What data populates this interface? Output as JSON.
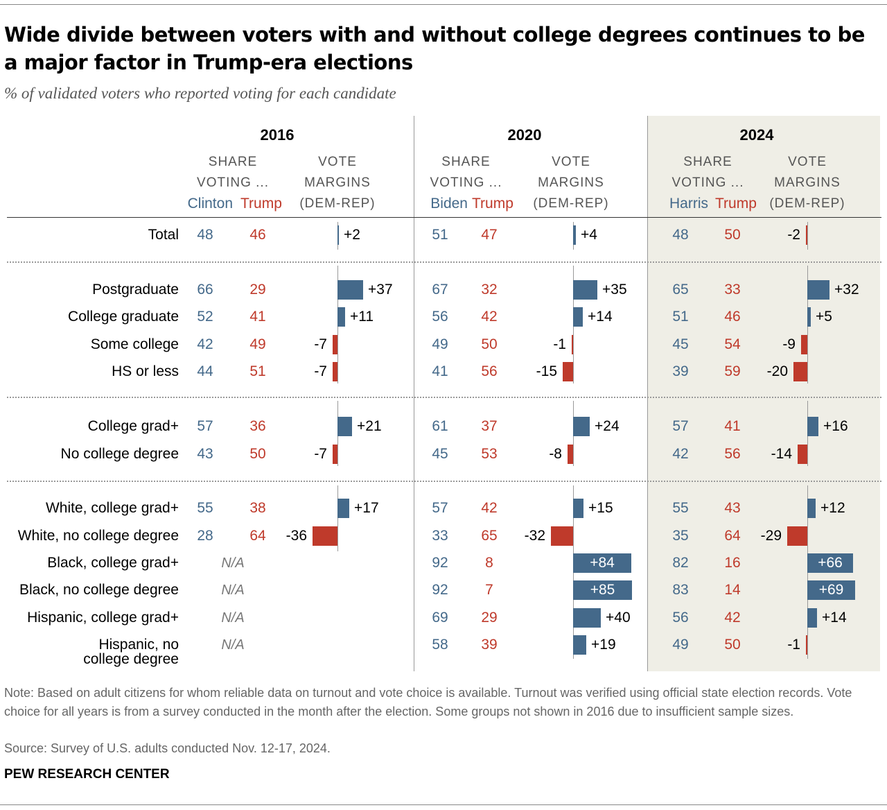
{
  "title": "Wide divide between voters with and without college degrees continues to be a major factor in Trump-era elections",
  "subtitle": "% of validated voters who reported voting for each candidate",
  "colors": {
    "dem": "#44698a",
    "rep": "#bf3a2b",
    "highlight_bg": "#efeee6"
  },
  "chart_data": {
    "type": "table",
    "header_share": [
      "SHARE",
      "VOTING ..."
    ],
    "header_margin": [
      "VOTE",
      "MARGINS",
      "(DEM-REP)"
    ],
    "years": [
      {
        "year": "2016",
        "dem": "Clinton",
        "rep": "Trump"
      },
      {
        "year": "2020",
        "dem": "Biden",
        "rep": "Trump"
      },
      {
        "year": "2024",
        "dem": "Harris",
        "rep": "Trump"
      }
    ],
    "na_label": "N/A",
    "rows": [
      {
        "label": "Total",
        "data": [
          [
            48,
            46,
            "+2",
            2
          ],
          [
            51,
            47,
            "+4",
            4
          ],
          [
            48,
            50,
            "-2",
            -2
          ]
        ]
      },
      {
        "label": "Postgraduate",
        "data": [
          [
            66,
            29,
            "+37",
            37
          ],
          [
            67,
            32,
            "+35",
            35
          ],
          [
            65,
            33,
            "+32",
            32
          ]
        ]
      },
      {
        "label": "College graduate",
        "data": [
          [
            52,
            41,
            "+11",
            11
          ],
          [
            56,
            42,
            "+14",
            14
          ],
          [
            51,
            46,
            "+5",
            5
          ]
        ]
      },
      {
        "label": "Some college",
        "data": [
          [
            42,
            49,
            "-7",
            -7
          ],
          [
            49,
            50,
            "-1",
            -1
          ],
          [
            45,
            54,
            "-9",
            -9
          ]
        ]
      },
      {
        "label": "HS or less",
        "data": [
          [
            44,
            51,
            "-7",
            -7
          ],
          [
            41,
            56,
            "-15",
            -15
          ],
          [
            39,
            59,
            "-20",
            -20
          ]
        ]
      },
      {
        "label": "College grad+",
        "data": [
          [
            57,
            36,
            "+21",
            21
          ],
          [
            61,
            37,
            "+24",
            24
          ],
          [
            57,
            41,
            "+16",
            16
          ]
        ]
      },
      {
        "label": "No college degree",
        "data": [
          [
            43,
            50,
            "-7",
            -7
          ],
          [
            45,
            53,
            "-8",
            -8
          ],
          [
            42,
            56,
            "-14",
            -14
          ]
        ]
      },
      {
        "label": "White, college grad+",
        "data": [
          [
            55,
            38,
            "+17",
            17
          ],
          [
            57,
            42,
            "+15",
            15
          ],
          [
            55,
            43,
            "+12",
            12
          ]
        ]
      },
      {
        "label": "White, no college degree",
        "data": [
          [
            28,
            64,
            "-36",
            -36
          ],
          [
            33,
            65,
            "-32",
            -32
          ],
          [
            35,
            64,
            "-29",
            -29
          ]
        ]
      },
      {
        "label": "Black, college grad+",
        "data": [
          null,
          [
            92,
            8,
            "+84",
            84
          ],
          [
            82,
            16,
            "+66",
            66
          ]
        ]
      },
      {
        "label": "Black, no college degree",
        "data": [
          null,
          [
            92,
            7,
            "+85",
            85
          ],
          [
            83,
            14,
            "+69",
            69
          ]
        ]
      },
      {
        "label": "Hispanic, college grad+",
        "data": [
          null,
          [
            69,
            29,
            "+40",
            40
          ],
          [
            56,
            42,
            "+14",
            14
          ]
        ]
      },
      {
        "label": "Hispanic, no college degree",
        "label_lines": [
          "Hispanic, no",
          "college degree"
        ],
        "data": [
          null,
          [
            58,
            39,
            "+19",
            19
          ],
          [
            49,
            50,
            "-1",
            -1
          ]
        ]
      }
    ]
  },
  "note": "Note: Based on adult citizens for whom reliable data on turnout and vote choice is available. Turnout was verified using official state election records. Vote choice for all years is from a survey conducted in the month after the election. Some groups not shown in 2016 due to insufficient sample sizes.",
  "source": "Source: Survey of U.S. adults conducted Nov. 12-17, 2024.",
  "logo": "PEW RESEARCH CENTER"
}
